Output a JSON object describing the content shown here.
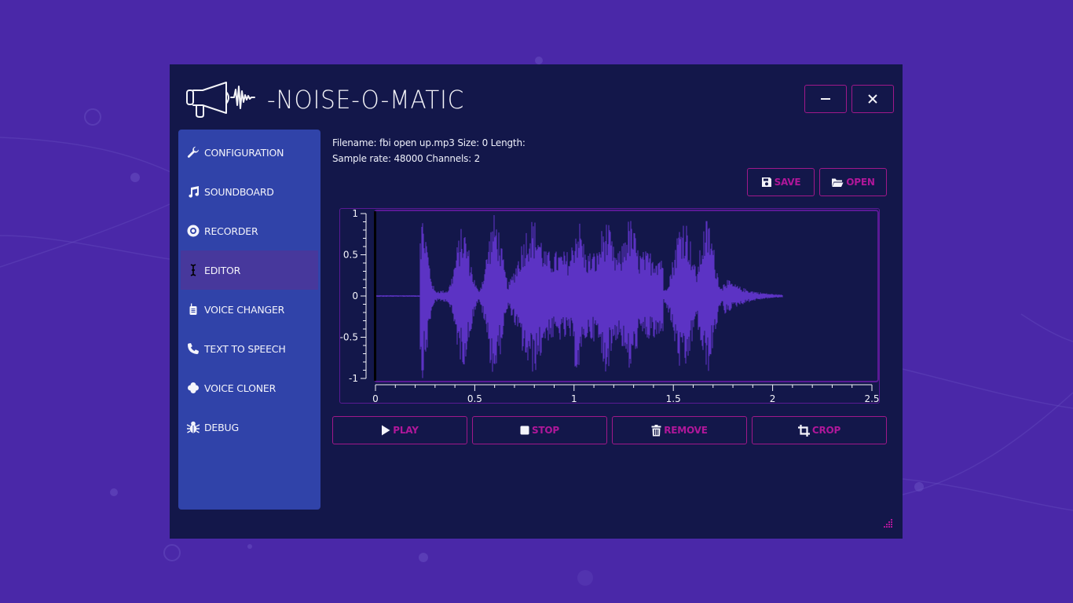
{
  "app": {
    "title": "-NOISE-O-MATIC",
    "logo_icon": "megaphone-waveform-icon",
    "window_controls": {
      "minimize": {
        "icon": "minimize-icon",
        "glyph": "—"
      },
      "close": {
        "icon": "close-icon",
        "glyph": "✕"
      }
    }
  },
  "colors": {
    "desktop_bg": "#4a28a8",
    "window_bg": "#13174a",
    "sidebar_bg": "#3043a9",
    "sidebar_active_bg": "#47389c",
    "accent": "#b0179a",
    "waveform": "#5c33c4",
    "chart_border": "#5a1a95"
  },
  "sidebar": {
    "active": "EDITOR",
    "items": [
      {
        "label": "CONFIGURATION",
        "icon": "wrench-icon"
      },
      {
        "label": "SOUNDBOARD",
        "icon": "music-note-icon"
      },
      {
        "label": "RECORDER",
        "icon": "record-disc-icon"
      },
      {
        "label": "EDITOR",
        "icon": "text-cursor-icon"
      },
      {
        "label": "VOICE CHANGER",
        "icon": "walkie-talkie-icon"
      },
      {
        "label": "TEXT TO SPEECH",
        "icon": "phone-icon"
      },
      {
        "label": "VOICE CLONER",
        "icon": "clover-icon"
      },
      {
        "label": "DEBUG",
        "icon": "bug-icon"
      }
    ]
  },
  "editor": {
    "file_info": {
      "line1": "Filename: fbi open up.mp3 Size: 0 Length:",
      "line2": "Sample rate: 48000 Channels: 2",
      "filename": "fbi open up.mp3",
      "size": "0",
      "length": "",
      "sample_rate": "48000",
      "channels": "2"
    },
    "file_buttons": {
      "save": {
        "label": "SAVE",
        "icon": "floppy-disk-icon"
      },
      "open": {
        "label": "OPEN",
        "icon": "folder-open-icon"
      }
    },
    "actions": {
      "play": {
        "label": "PLAY",
        "icon": "play-icon"
      },
      "stop": {
        "label": "STOP",
        "icon": "stop-icon"
      },
      "remove": {
        "label": "REMOVE",
        "icon": "trash-icon"
      },
      "crop": {
        "label": "CROP",
        "icon": "crop-icon"
      }
    },
    "waveform": {
      "x_ticks": [
        "0",
        "0.5",
        "1",
        "1.5",
        "2",
        "2.5"
      ],
      "y_ticks": [
        "1",
        "0.5",
        "0",
        "-0.5",
        "-1"
      ],
      "xlim": [
        0,
        2.5
      ],
      "ylim": [
        -1,
        1
      ],
      "cursor_position": 0,
      "audio_end": 2.05
    }
  }
}
